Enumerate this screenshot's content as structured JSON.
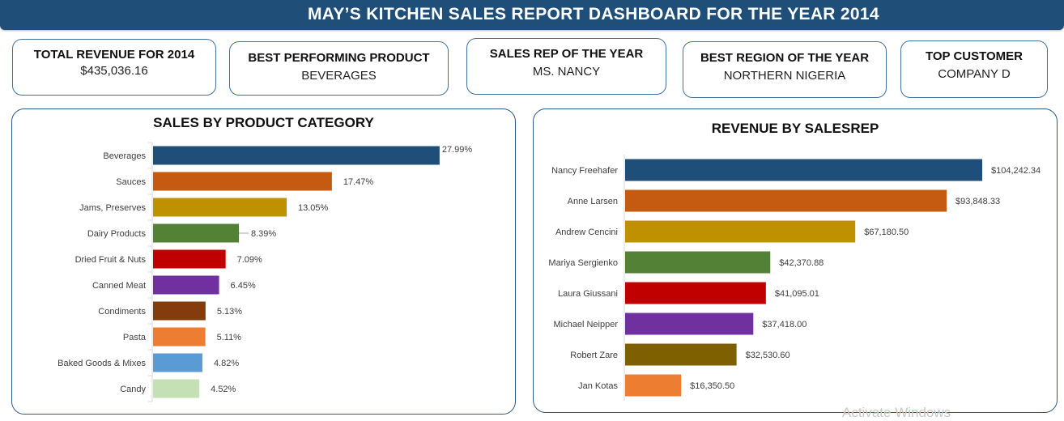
{
  "header": {
    "title": "MAY’S KITCHEN SALES REPORT DASHBOARD FOR THE YEAR 2014"
  },
  "kpis": [
    {
      "label": "TOTAL REVENUE FOR 2014",
      "value": "$435,036.16"
    },
    {
      "label": "BEST PERFORMING PRODUCT",
      "value": "BEVERAGES"
    },
    {
      "label": "SALES REP OF THE YEAR",
      "value": "MS. NANCY"
    },
    {
      "label": "BEST REGION OF THE YEAR",
      "value": "NORTHERN NIGERIA"
    },
    {
      "label": "TOP CUSTOMER",
      "value": "COMPANY D"
    }
  ],
  "watermark": "Activate Windows",
  "chart_data": [
    {
      "type": "bar",
      "orientation": "horizontal",
      "title": "SALES BY PRODUCT CATEGORY",
      "xlabel": "",
      "ylabel": "",
      "grid": false,
      "legend": "none",
      "categories": [
        "Beverages",
        "Sauces",
        "Jams, Preserves",
        "Dairy Products",
        "Dried Fruit & Nuts",
        "Canned Meat",
        "Condiments",
        "Pasta",
        "Baked Goods & Mixes",
        "Candy"
      ],
      "values": [
        27.99,
        17.47,
        13.05,
        8.39,
        7.09,
        6.45,
        5.13,
        5.11,
        4.82,
        4.52
      ],
      "labels": [
        "27.99%",
        "17.47%",
        "13.05%",
        "8.39%",
        "7.09%",
        "6.45%",
        "5.13%",
        "5.11%",
        "4.82%",
        "4.52%"
      ],
      "colors": [
        "#1f4e79",
        "#c55a11",
        "#bf9000",
        "#538135",
        "#c00000",
        "#7030a0",
        "#843c0c",
        "#ed7d31",
        "#5b9bd5",
        "#c5e0b4"
      ],
      "xlim": [
        0,
        28
      ]
    },
    {
      "type": "bar",
      "orientation": "horizontal",
      "title": "REVENUE BY SALESREP",
      "xlabel": "",
      "ylabel": "",
      "grid": false,
      "legend": "none",
      "categories": [
        "Nancy Freehafer",
        "Anne Larsen",
        "Andrew Cencini",
        "Mariya Sergienko",
        "Laura Giussani",
        "Michael Neipper",
        "Robert Zare",
        "Jan Kotas"
      ],
      "values": [
        104242.34,
        93848.33,
        67180.5,
        42370.88,
        41095.01,
        37418.0,
        32530.6,
        16350.5
      ],
      "labels": [
        "$104,242.34",
        "$93,848.33",
        "$67,180.50",
        "$42,370.88",
        "$41,095.01",
        "$37,418.00",
        "$32,530.60",
        "$16,350.50"
      ],
      "colors": [
        "#1f4e79",
        "#c55a11",
        "#bf9000",
        "#538135",
        "#c00000",
        "#7030a0",
        "#7f6000",
        "#ed7d31"
      ],
      "xlim": [
        0,
        104242.34
      ]
    }
  ]
}
